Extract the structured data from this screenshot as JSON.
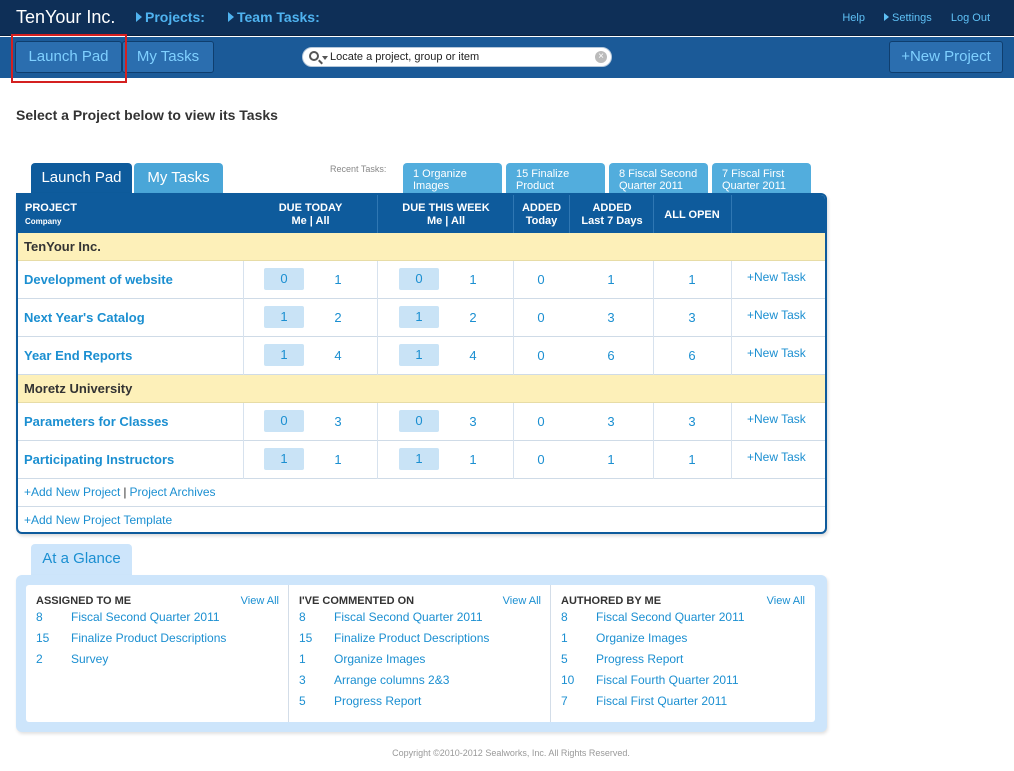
{
  "topbar": {
    "brand": "TenYour Inc.",
    "nav": [
      "Projects:",
      "Team Tasks:"
    ],
    "links": {
      "help": "Help",
      "settings": "Settings",
      "logout": "Log Out"
    }
  },
  "subbar": {
    "launch_pad": "Launch Pad",
    "my_tasks": "My Tasks",
    "search_placeholder": "Locate a project, group or item",
    "new_project": "+New Project"
  },
  "heading": "Select a Project below to view its Tasks",
  "tabs": {
    "launch_pad": "Launch Pad",
    "my_tasks": "My Tasks"
  },
  "recent": {
    "label": "Recent Tasks:",
    "items": [
      "1 Organize Images",
      "15 Finalize Product",
      "8 Fiscal Second Quarter 2011",
      "7 Fiscal First Quarter 2011"
    ]
  },
  "table": {
    "headers": {
      "project": "PROJECT",
      "company": "Company",
      "due_today": "DUE TODAY",
      "due_week": "DUE THIS WEEK",
      "me_all": "Me | All",
      "added_today": "ADDED",
      "added_today_sub": "Today",
      "added_7": "ADDED",
      "added_7_sub": "Last 7 Days",
      "all_open": "ALL OPEN"
    },
    "groups": [
      {
        "name": "TenYour Inc.",
        "rows": [
          {
            "name": "Development of website",
            "today_me": "0",
            "today_all": "1",
            "week_me": "0",
            "week_all": "1",
            "added_today": "0",
            "added_7": "1",
            "all_open": "1",
            "action": "+New Task"
          },
          {
            "name": "Next Year's Catalog",
            "today_me": "1",
            "today_all": "2",
            "week_me": "1",
            "week_all": "2",
            "added_today": "0",
            "added_7": "3",
            "all_open": "3",
            "action": "+New Task"
          },
          {
            "name": "Year End Reports",
            "today_me": "1",
            "today_all": "4",
            "week_me": "1",
            "week_all": "4",
            "added_today": "0",
            "added_7": "6",
            "all_open": "6",
            "action": "+New Task"
          }
        ]
      },
      {
        "name": "Moretz University",
        "rows": [
          {
            "name": "Parameters for Classes",
            "today_me": "0",
            "today_all": "3",
            "week_me": "0",
            "week_all": "3",
            "added_today": "0",
            "added_7": "3",
            "all_open": "3",
            "action": "+New Task"
          },
          {
            "name": "Participating Instructors",
            "today_me": "1",
            "today_all": "1",
            "week_me": "1",
            "week_all": "1",
            "added_today": "0",
            "added_7": "1",
            "all_open": "1",
            "action": "+New Task"
          }
        ]
      }
    ],
    "links": {
      "add_project": "+Add New Project",
      "separator": "|",
      "archives": "Project Archives",
      "add_template": "+Add New Project Template"
    }
  },
  "glance": {
    "tab": "At a Glance",
    "view_all": "View All",
    "columns": [
      {
        "title": "ASSIGNED TO ME",
        "items": [
          {
            "n": "8",
            "t": "Fiscal Second Quarter 2011"
          },
          {
            "n": "15",
            "t": "Finalize Product Descriptions"
          },
          {
            "n": "2",
            "t": "Survey"
          }
        ]
      },
      {
        "title": "I'VE COMMENTED ON",
        "items": [
          {
            "n": "8",
            "t": "Fiscal Second Quarter 2011"
          },
          {
            "n": "15",
            "t": "Finalize Product Descriptions"
          },
          {
            "n": "1",
            "t": "Organize Images"
          },
          {
            "n": "3",
            "t": "Arrange columns 2&3"
          },
          {
            "n": "5",
            "t": "Progress Report"
          }
        ]
      },
      {
        "title": "AUTHORED BY ME",
        "items": [
          {
            "n": "8",
            "t": "Fiscal Second Quarter 2011"
          },
          {
            "n": "1",
            "t": "Organize Images"
          },
          {
            "n": "5",
            "t": "Progress Report"
          },
          {
            "n": "10",
            "t": "Fiscal Fourth Quarter 2011"
          },
          {
            "n": "7",
            "t": "Fiscal First Quarter 2011"
          }
        ]
      }
    ]
  },
  "footer": "Copyright ©2010-2012 Sealworks, Inc. All Rights Reserved."
}
